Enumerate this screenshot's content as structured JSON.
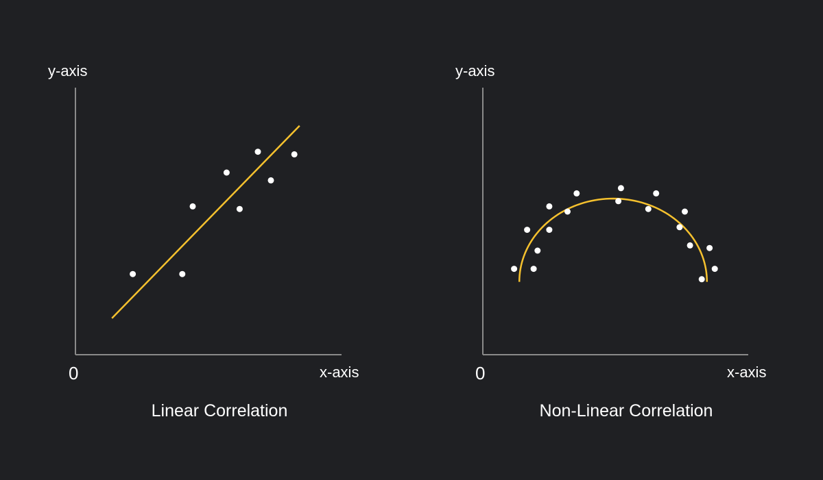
{
  "colors": {
    "background": "#1f2023",
    "axis": "#8a8a8a",
    "point": "#ffffff",
    "curve": "#f5c12e",
    "text": "#ffffff"
  },
  "chart_data": [
    {
      "type": "scatter",
      "title": "Linear Correlation",
      "xlabel": "x-axis",
      "ylabel": "y-axis",
      "origin_label": "0",
      "xlim": [
        0,
        10
      ],
      "ylim": [
        0,
        10
      ],
      "grid": false,
      "points": [
        {
          "x": 2.2,
          "y": 3.1
        },
        {
          "x": 4.1,
          "y": 3.1
        },
        {
          "x": 4.5,
          "y": 5.7
        },
        {
          "x": 5.8,
          "y": 7.0
        },
        {
          "x": 6.3,
          "y": 5.6
        },
        {
          "x": 7.0,
          "y": 7.8
        },
        {
          "x": 7.5,
          "y": 6.7
        },
        {
          "x": 8.4,
          "y": 7.7
        }
      ],
      "fit": {
        "kind": "line",
        "from": {
          "x": 1.4,
          "y": 1.4
        },
        "to": {
          "x": 8.6,
          "y": 8.8
        }
      }
    },
    {
      "type": "scatter",
      "title": "Non-Linear Correlation",
      "xlabel": "x-axis",
      "ylabel": "y-axis",
      "origin_label": "0",
      "xlim": [
        0,
        10
      ],
      "ylim": [
        0,
        10
      ],
      "grid": false,
      "points": [
        {
          "x": 1.2,
          "y": 3.3
        },
        {
          "x": 1.7,
          "y": 4.8
        },
        {
          "x": 1.95,
          "y": 3.3
        },
        {
          "x": 2.1,
          "y": 4.0
        },
        {
          "x": 2.55,
          "y": 4.8
        },
        {
          "x": 2.55,
          "y": 5.7
        },
        {
          "x": 3.25,
          "y": 5.5
        },
        {
          "x": 3.6,
          "y": 6.2
        },
        {
          "x": 5.2,
          "y": 5.9
        },
        {
          "x": 5.3,
          "y": 6.4
        },
        {
          "x": 6.35,
          "y": 5.6
        },
        {
          "x": 6.65,
          "y": 6.2
        },
        {
          "x": 7.55,
          "y": 4.9
        },
        {
          "x": 7.75,
          "y": 5.5
        },
        {
          "x": 7.95,
          "y": 4.2
        },
        {
          "x": 8.4,
          "y": 2.9
        },
        {
          "x": 8.7,
          "y": 4.1
        },
        {
          "x": 8.9,
          "y": 3.3
        }
      ],
      "fit": {
        "kind": "arc",
        "center_x": 5.0,
        "base_y": 2.8,
        "half_width": 3.6,
        "peak_y": 6.0
      }
    }
  ]
}
